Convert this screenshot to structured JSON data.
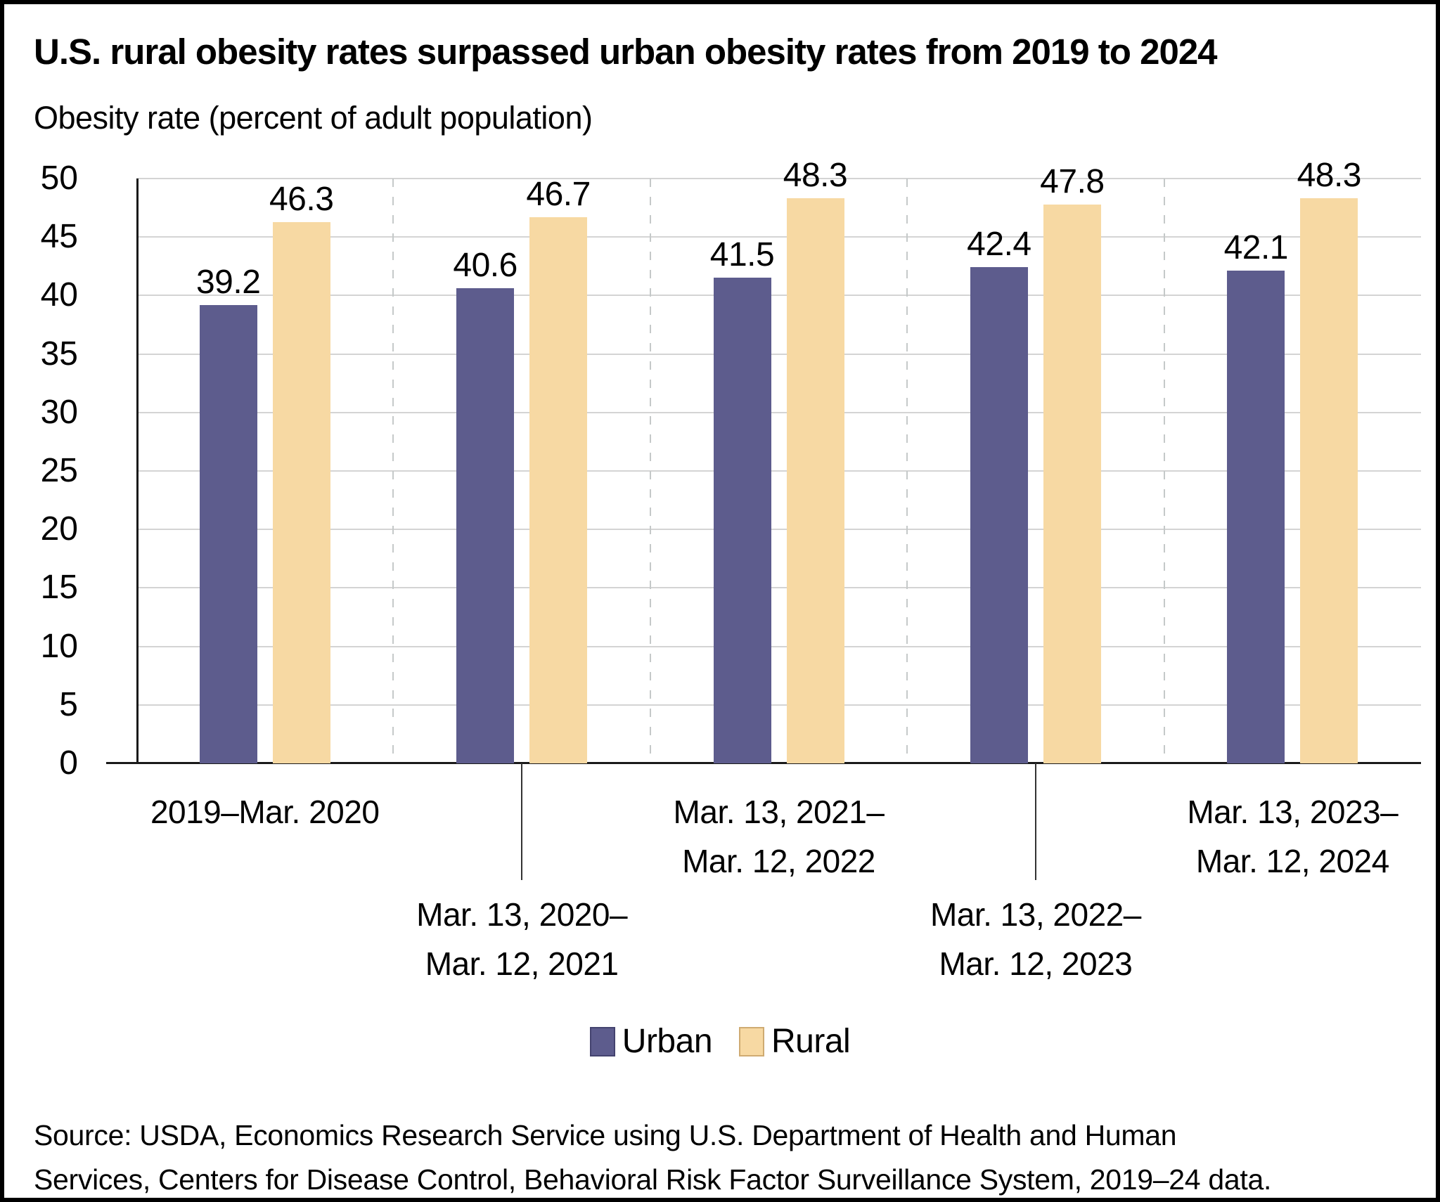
{
  "title": "U.S. rural obesity rates surpassed urban obesity rates from 2019 to 2024",
  "y_axis_title": "Obesity rate (percent of adult population)",
  "colors": {
    "urban": "#5d5c8d",
    "rural": "#f7d9a3",
    "urban_swatch_border": "#44436f",
    "rural_swatch_border": "#cfab72",
    "gridline": "#d4d4d4",
    "axis": "#1a1a1a"
  },
  "source_lines": [
    "Source: USDA, Economics Research Service using U.S. Department of Health and Human",
    "Services, Centers for Disease Control, Behavioral Risk Factor Surveillance System, 2019–24 data."
  ],
  "chart_data": {
    "type": "bar",
    "title": "U.S. rural obesity rates surpassed urban obesity rates from 2019 to 2024",
    "xlabel": "",
    "ylabel": "Obesity rate (percent of adult population)",
    "ylim": [
      0,
      50
    ],
    "yticks": [
      0,
      5,
      10,
      15,
      20,
      25,
      30,
      35,
      40,
      45,
      50
    ],
    "grid": "horizontal solid gray lines every 5; dashed vertical separators between category groups",
    "legend_position": "bottom-center",
    "categories": [
      "2019–Mar. 2020",
      "Mar. 13, 2020–Mar. 12, 2021",
      "Mar. 13, 2021–Mar. 12, 2022",
      "Mar. 13, 2022–Mar. 12, 2023",
      "Mar. 13, 2023–Mar. 12, 2024"
    ],
    "category_label_lines": [
      [
        "2019–Mar. 2020"
      ],
      [
        "Mar. 13, 2020–",
        "Mar. 12, 2021"
      ],
      [
        "Mar. 13, 2021–",
        "Mar. 12, 2022"
      ],
      [
        "Mar. 13, 2022–",
        "Mar. 12, 2023"
      ],
      [
        "Mar. 13, 2023–",
        "Mar. 12, 2024"
      ]
    ],
    "category_label_row": [
      "upper",
      "lower",
      "upper",
      "lower",
      "upper"
    ],
    "series": [
      {
        "name": "Urban",
        "color": "#5d5c8d",
        "values": [
          39.2,
          40.6,
          41.5,
          42.4,
          42.1
        ]
      },
      {
        "name": "Rural",
        "color": "#f7d9a3",
        "values": [
          46.3,
          46.7,
          48.3,
          47.8,
          48.3
        ]
      }
    ]
  }
}
